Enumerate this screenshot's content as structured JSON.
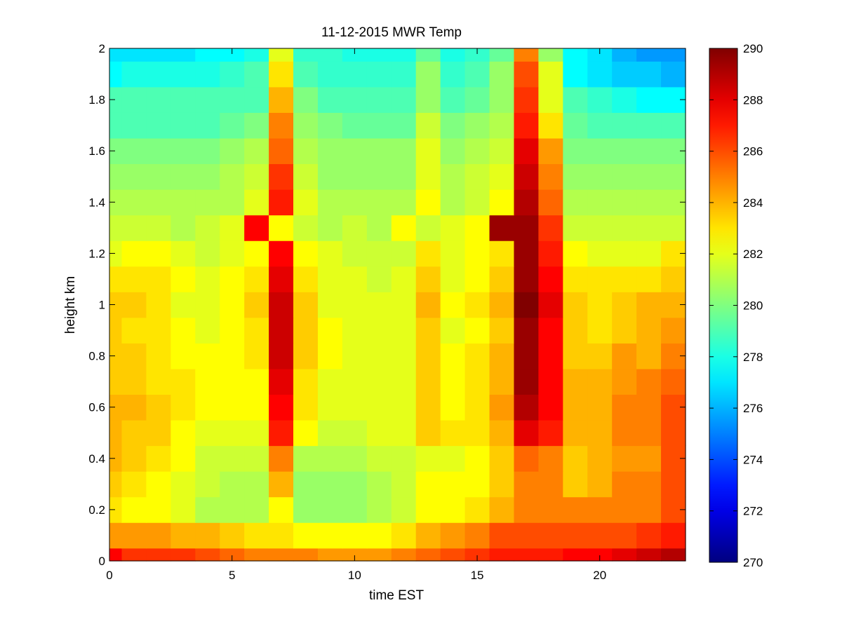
{
  "chart_data": {
    "type": "heatmap",
    "title": "11-12-2015 MWR Temp",
    "xlabel": "time EST",
    "ylabel": "height km",
    "xlim": [
      0,
      23.5
    ],
    "ylim": [
      0,
      2
    ],
    "xticks": [
      0,
      5,
      10,
      15,
      20
    ],
    "yticks": [
      0,
      0.2,
      0.4,
      0.6,
      0.8,
      1,
      1.2,
      1.4,
      1.6,
      1.8,
      2
    ],
    "ytick_labels": [
      "0",
      "0.2",
      "0.4",
      "0.6",
      "0.8",
      "1",
      "1.2",
      "1.4",
      "1.6",
      "1.8",
      "2"
    ],
    "colorbar": {
      "range": [
        270,
        290
      ],
      "ticks": [
        270,
        272,
        274,
        276,
        278,
        280,
        282,
        284,
        286,
        288,
        290
      ],
      "colormap": "jet"
    },
    "x_edges": [
      0,
      0.5,
      1.5,
      2.5,
      3.5,
      4.5,
      5.5,
      6.5,
      7.5,
      8.5,
      9.5,
      10.5,
      11.5,
      12.5,
      13.5,
      14.5,
      15.5,
      16.5,
      17.5,
      18.5,
      19.5,
      20.5,
      21.5,
      22.5,
      23.5
    ],
    "y_edges": [
      0,
      0.05,
      0.15,
      0.25,
      0.35,
      0.45,
      0.55,
      0.65,
      0.75,
      0.85,
      0.95,
      1.05,
      1.15,
      1.25,
      1.35,
      1.45,
      1.55,
      1.65,
      1.75,
      1.85,
      1.95,
      2.0
    ],
    "values": [
      [
        287.5,
        286.5,
        286.5,
        286.5,
        286.0,
        285.5,
        285.0,
        285.0,
        285.0,
        284.5,
        284.5,
        284.5,
        285.0,
        285.5,
        286.0,
        286.5,
        287.0,
        287.0,
        287.0,
        287.5,
        287.5,
        288.0,
        288.5,
        289.0
      ],
      [
        284.5,
        284.5,
        284.5,
        284.0,
        284.0,
        283.5,
        283.0,
        283.0,
        282.5,
        282.5,
        282.5,
        282.5,
        283.0,
        284.0,
        284.5,
        285.0,
        286.0,
        286.0,
        286.0,
        286.0,
        286.0,
        286.0,
        286.5,
        287.0
      ],
      [
        283.0,
        282.5,
        282.5,
        282.0,
        281.0,
        281.0,
        281.0,
        282.5,
        280.5,
        280.5,
        280.5,
        281.0,
        281.5,
        282.5,
        282.5,
        283.0,
        284.0,
        285.0,
        285.0,
        285.0,
        285.0,
        285.0,
        285.0,
        286.0
      ],
      [
        283.5,
        283.0,
        282.5,
        282.0,
        281.5,
        281.0,
        281.0,
        284.0,
        280.5,
        280.5,
        280.5,
        281.0,
        281.5,
        282.5,
        282.5,
        282.5,
        283.5,
        285.0,
        285.0,
        283.5,
        284.0,
        285.0,
        285.0,
        286.0
      ],
      [
        284.0,
        283.5,
        283.0,
        282.5,
        281.5,
        281.5,
        281.5,
        285.0,
        281.0,
        281.0,
        281.0,
        281.5,
        281.5,
        282.0,
        282.0,
        282.5,
        283.5,
        285.5,
        285.0,
        283.5,
        284.0,
        284.5,
        284.5,
        286.0
      ],
      [
        284.0,
        283.5,
        283.5,
        282.5,
        282.0,
        282.0,
        282.0,
        287.0,
        282.5,
        281.5,
        281.5,
        282.0,
        282.0,
        283.5,
        283.0,
        283.0,
        284.0,
        288.0,
        287.0,
        284.0,
        284.0,
        285.0,
        285.0,
        286.0
      ],
      [
        284.0,
        284.0,
        283.5,
        283.0,
        282.5,
        282.5,
        282.5,
        287.5,
        283.0,
        282.0,
        282.0,
        282.0,
        282.0,
        283.5,
        282.5,
        283.0,
        284.5,
        289.0,
        287.5,
        284.0,
        284.0,
        285.0,
        285.0,
        286.0
      ],
      [
        283.5,
        283.5,
        283.0,
        283.0,
        282.5,
        282.5,
        282.5,
        288.0,
        283.0,
        282.0,
        282.0,
        282.0,
        282.0,
        283.5,
        282.5,
        283.0,
        284.0,
        289.5,
        287.5,
        284.0,
        284.0,
        284.5,
        285.0,
        285.5
      ],
      [
        283.5,
        283.5,
        283.0,
        282.5,
        282.5,
        282.5,
        283.0,
        288.5,
        283.5,
        282.5,
        282.0,
        282.0,
        282.0,
        283.5,
        282.5,
        283.0,
        284.0,
        289.5,
        287.5,
        283.5,
        283.5,
        284.5,
        284.0,
        285.0
      ],
      [
        283.5,
        283.0,
        283.0,
        282.5,
        282.0,
        282.5,
        283.0,
        288.5,
        283.5,
        282.5,
        282.0,
        282.0,
        282.0,
        283.5,
        282.0,
        282.5,
        283.5,
        289.5,
        287.5,
        283.5,
        283.0,
        283.5,
        284.0,
        284.5
      ],
      [
        283.5,
        283.5,
        283.0,
        282.0,
        282.0,
        282.5,
        283.5,
        288.5,
        283.5,
        282.0,
        282.0,
        282.0,
        282.0,
        284.0,
        282.5,
        283.0,
        284.0,
        290.0,
        288.0,
        283.5,
        283.0,
        283.5,
        284.0,
        284.0
      ],
      [
        283.0,
        283.0,
        283.0,
        282.5,
        282.0,
        282.5,
        283.0,
        288.0,
        283.0,
        282.0,
        282.0,
        281.5,
        282.0,
        283.5,
        282.0,
        282.5,
        283.5,
        289.5,
        287.5,
        283.0,
        283.0,
        283.0,
        283.0,
        283.5
      ],
      [
        282.0,
        282.5,
        282.5,
        282.0,
        281.5,
        282.0,
        282.5,
        287.5,
        282.5,
        282.0,
        281.5,
        281.5,
        281.5,
        283.0,
        282.0,
        282.5,
        283.0,
        289.5,
        287.0,
        282.5,
        282.0,
        282.0,
        282.0,
        283.0
      ],
      [
        281.5,
        281.5,
        281.5,
        281.0,
        281.5,
        282.0,
        287.5,
        282.5,
        281.5,
        281.0,
        281.5,
        281.0,
        282.5,
        281.5,
        282.0,
        282.5,
        289.5,
        289.5,
        286.5,
        281.5,
        281.5,
        281.5,
        281.5,
        281.5
      ],
      [
        281.0,
        281.0,
        281.0,
        281.0,
        281.0,
        281.0,
        282.0,
        287.0,
        282.0,
        281.0,
        281.0,
        281.0,
        281.0,
        282.5,
        281.0,
        281.5,
        282.5,
        289.0,
        285.5,
        281.0,
        281.0,
        281.0,
        281.0,
        281.0
      ],
      [
        280.5,
        280.5,
        280.5,
        280.5,
        280.5,
        281.0,
        281.5,
        286.5,
        281.5,
        280.5,
        280.5,
        280.5,
        280.5,
        282.0,
        281.0,
        281.5,
        282.0,
        288.5,
        285.0,
        280.5,
        280.5,
        280.5,
        280.5,
        280.5
      ],
      [
        280.0,
        280.0,
        280.0,
        280.0,
        280.0,
        280.5,
        281.0,
        285.5,
        281.0,
        280.5,
        280.5,
        280.5,
        280.5,
        282.0,
        280.5,
        281.0,
        281.5,
        288.0,
        284.5,
        280.0,
        280.0,
        280.0,
        280.0,
        280.0
      ],
      [
        279.0,
        279.0,
        279.0,
        279.0,
        279.0,
        279.5,
        280.0,
        285.0,
        280.5,
        280.0,
        279.5,
        279.5,
        279.5,
        281.5,
        280.0,
        280.5,
        281.0,
        287.0,
        283.0,
        279.5,
        279.0,
        279.0,
        279.0,
        279.0
      ],
      [
        279.0,
        279.0,
        279.0,
        279.0,
        279.0,
        279.0,
        279.0,
        284.0,
        280.0,
        279.0,
        279.0,
        279.0,
        279.0,
        280.5,
        279.0,
        279.5,
        280.5,
        286.5,
        282.0,
        279.0,
        278.5,
        278.0,
        277.5,
        277.5
      ],
      [
        277.5,
        278.0,
        278.0,
        278.0,
        278.0,
        278.5,
        279.0,
        283.0,
        279.0,
        278.5,
        278.5,
        278.5,
        278.5,
        280.5,
        278.5,
        279.0,
        280.5,
        286.0,
        282.0,
        277.5,
        277.0,
        276.5,
        276.5,
        276.0
      ],
      [
        277.0,
        277.0,
        277.0,
        277.0,
        277.5,
        277.5,
        278.0,
        282.0,
        278.5,
        278.5,
        278.0,
        278.0,
        278.0,
        279.5,
        278.0,
        278.5,
        279.5,
        285.0,
        280.5,
        277.5,
        277.0,
        276.0,
        275.5,
        275.5
      ]
    ]
  }
}
